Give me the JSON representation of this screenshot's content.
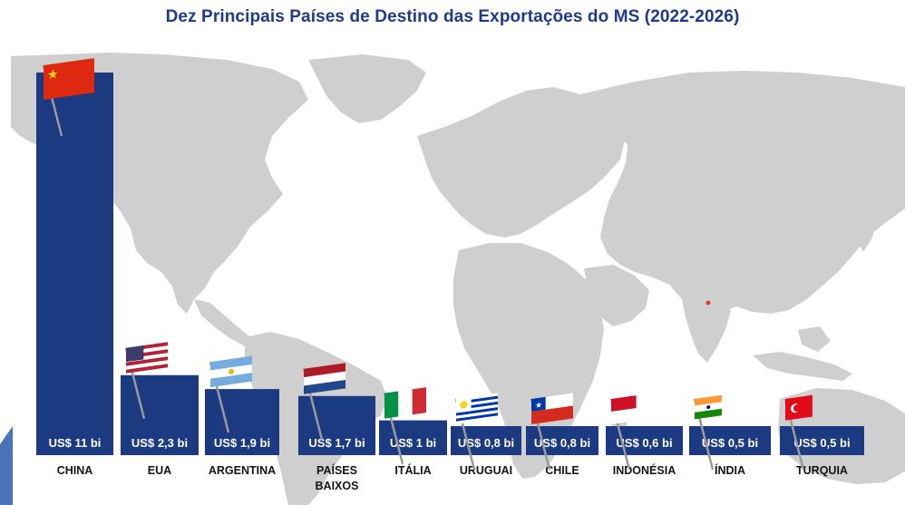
{
  "chart_data": {
    "type": "bar",
    "title": "Dez Principais Países de Destino das Exportações do MS (2022-2026)",
    "categories": [
      "CHINA",
      "EUA",
      "ARGENTINA",
      "PAÍSES BAIXOS",
      "ITÁLIA",
      "URUGUAI",
      "CHILE",
      "INDONÉSIA",
      "ÍNDIA",
      "TURQUIA"
    ],
    "values": [
      11,
      2.3,
      1.9,
      1.7,
      1.0,
      0.8,
      0.8,
      0.6,
      0.5,
      0.5
    ],
    "value_labels": [
      "US$ 11 bi",
      "US$ 2,3 bi",
      "US$ 1,9 bi",
      "US$ 1,7 bi",
      "US$ 1 bi",
      "US$ 0,8 bi",
      "US$ 0,8 bi",
      "US$ 0,6 bi",
      "US$ 0,5 bi",
      "US$ 0,5 bi"
    ],
    "unit": "US$ bi",
    "bar_color": "#1c3a82",
    "background": "world map (light gray)"
  },
  "flags": [
    "china-flag-icon",
    "usa-flag-icon",
    "argentina-flag-icon",
    "netherlands-flag-icon",
    "italy-flag-icon",
    "uruguay-flag-icon",
    "chile-flag-icon",
    "indonesia-flag-icon",
    "india-flag-icon",
    "turkey-flag-icon"
  ]
}
